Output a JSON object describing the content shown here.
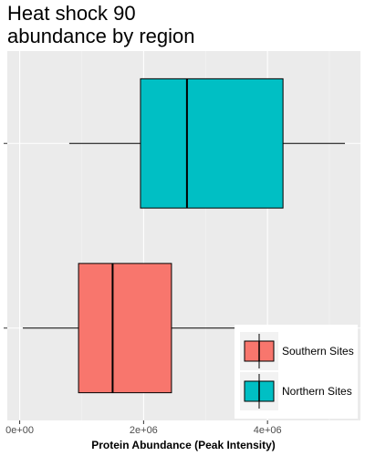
{
  "chart_data": {
    "type": "boxplot",
    "title": "Heat shock 90\nabundance by region",
    "xlabel": "Protein Abundance (Peak Intensity)",
    "ylabel": "",
    "xlim": [
      -200000,
      5500000
    ],
    "x_ticks": [
      {
        "value": 0,
        "label": "0e+00"
      },
      {
        "value": 2000000,
        "label": "2e+06"
      },
      {
        "value": 4000000,
        "label": "4e+06"
      }
    ],
    "orientation": "horizontal",
    "grid": true,
    "legend_position": "bottom-right",
    "series": [
      {
        "name": "Southern Sites",
        "color": "#F8766D",
        "min": 50000,
        "q1": 950000,
        "median": 1500000,
        "q3": 2450000,
        "max": 3700000
      },
      {
        "name": "Northern Sites",
        "color": "#00BFC4",
        "min": 800000,
        "q1": 1950000,
        "median": 2700000,
        "q3": 4250000,
        "max": 5250000
      }
    ]
  }
}
